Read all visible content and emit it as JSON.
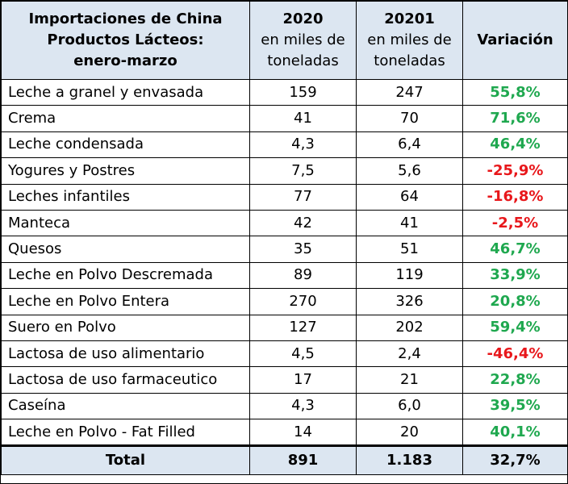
{
  "header": {
    "title_lines": [
      "Importaciones de China",
      "Productos Lácteos:",
      "enero-marzo"
    ],
    "col2_year": "2020",
    "col2_unit_lines": [
      "en miles de",
      "toneladas"
    ],
    "col3_year": "20201",
    "col3_unit_lines": [
      "en miles de",
      "toneladas"
    ],
    "col4": "Variación"
  },
  "rows": [
    {
      "product": "Leche a granel y envasada",
      "y2020": "159",
      "y2021": "247",
      "variation": "55,8%",
      "trend": "pos"
    },
    {
      "product": "Crema",
      "y2020": "41",
      "y2021": "70",
      "variation": "71,6%",
      "trend": "pos"
    },
    {
      "product": "Leche condensada",
      "y2020": "4,3",
      "y2021": "6,4",
      "variation": "46,4%",
      "trend": "pos"
    },
    {
      "product": "Yogures y Postres",
      "y2020": "7,5",
      "y2021": "5,6",
      "variation": "-25,9%",
      "trend": "neg"
    },
    {
      "product": "Leches infantiles",
      "y2020": "77",
      "y2021": "64",
      "variation": "-16,8%",
      "trend": "neg"
    },
    {
      "product": "Manteca",
      "y2020": "42",
      "y2021": "41",
      "variation": "-2,5%",
      "trend": "neg"
    },
    {
      "product": "Quesos",
      "y2020": "35",
      "y2021": "51",
      "variation": "46,7%",
      "trend": "pos"
    },
    {
      "product": "Leche en Polvo Descremada",
      "y2020": "89",
      "y2021": "119",
      "variation": "33,9%",
      "trend": "pos"
    },
    {
      "product": "Leche en Polvo Entera",
      "y2020": "270",
      "y2021": "326",
      "variation": "20,8%",
      "trend": "pos"
    },
    {
      "product": "Suero en Polvo",
      "y2020": "127",
      "y2021": "202",
      "variation": "59,4%",
      "trend": "pos"
    },
    {
      "product": "Lactosa de uso alimentario",
      "y2020": "4,5",
      "y2021": "2,4",
      "variation": "-46,4%",
      "trend": "neg"
    },
    {
      "product": "Lactosa de uso farmaceutico",
      "y2020": "17",
      "y2021": "21",
      "variation": "22,8%",
      "trend": "pos"
    },
    {
      "product": "Caseína",
      "y2020": "4,3",
      "y2021": "6,0",
      "variation": "39,5%",
      "trend": "pos"
    },
    {
      "product": "Leche en Polvo - Fat Filled",
      "y2020": "14",
      "y2021": "20",
      "variation": "40,1%",
      "trend": "pos"
    }
  ],
  "total": {
    "label": "Total",
    "y2020": "891",
    "y2021": "1.183",
    "variation": "32,7%"
  },
  "colors": {
    "header_bg": "#dce6f1",
    "positive": "#1fa84f",
    "negative": "#e8171b"
  }
}
